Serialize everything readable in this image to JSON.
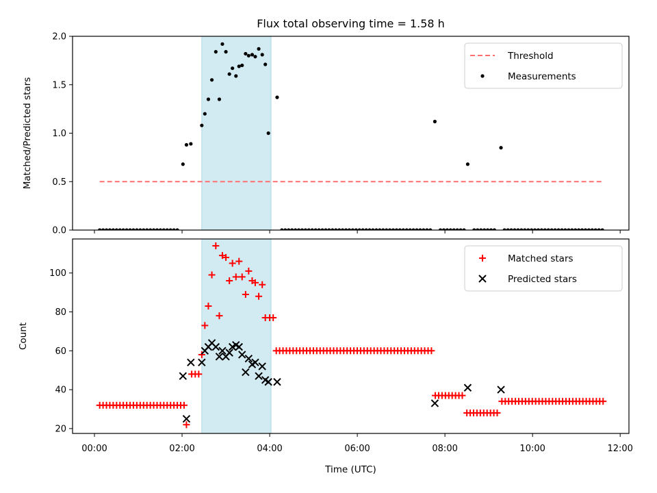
{
  "chart_data": [
    {
      "type": "scatter",
      "title": "Flux total observing time = 1.58 h",
      "xlabel": "",
      "ylabel": "Matched/Predicted stars",
      "xlim": [
        -0.5,
        12.2
      ],
      "ylim": [
        0,
        2.0
      ],
      "yticks": [
        "0.0",
        "0.5",
        "1.0",
        "1.5",
        "2.0"
      ],
      "ytick_values": [
        0,
        0.5,
        1.0,
        1.5,
        2.0
      ],
      "shaded_region": {
        "x0": 2.45,
        "x1": 4.03,
        "color": "#add8e6"
      },
      "threshold": {
        "name": "Threshold",
        "y": 0.5,
        "x0": 0.12,
        "x1": 11.62,
        "color": "#ff6f6f"
      },
      "legend": {
        "position": "upper right",
        "entries": [
          "Threshold",
          "Measurements"
        ]
      },
      "series": [
        {
          "name": "Measurements",
          "color": "#000000",
          "x": [
            2.02,
            2.1,
            2.2,
            2.45,
            2.52,
            2.6,
            2.68,
            2.77,
            2.85,
            2.92,
            3.0,
            3.08,
            3.15,
            3.23,
            3.3,
            3.37,
            3.45,
            3.52,
            3.6,
            3.67,
            3.75,
            3.83,
            3.9,
            3.97,
            4.17,
            7.77,
            8.52,
            9.28
          ],
          "y": [
            0.68,
            0.88,
            0.89,
            1.08,
            1.2,
            1.35,
            1.55,
            1.84,
            1.35,
            1.92,
            1.84,
            1.61,
            1.67,
            1.59,
            1.69,
            1.7,
            1.82,
            1.8,
            1.81,
            1.79,
            1.87,
            1.81,
            1.71,
            1.0,
            1.37,
            1.12,
            0.68,
            0.85
          ],
          "zero_points": {
            "x_start": 0.12,
            "x_end": 11.62,
            "step": 0.077,
            "gaps": [
              [
                1.95,
                4.15
              ],
              [
                4.1,
                4.25
              ],
              [
                7.7,
                7.84
              ],
              [
                8.45,
                8.6
              ],
              [
                9.2,
                9.35
              ]
            ]
          }
        }
      ]
    },
    {
      "type": "scatter",
      "title": "",
      "xlabel": "Time (UTC)",
      "ylabel": "Count",
      "xlim": [
        -0.5,
        12.2
      ],
      "ylim": [
        17.5,
        117.5
      ],
      "xticks": [
        "00:00",
        "02:00",
        "04:00",
        "06:00",
        "08:00",
        "10:00",
        "12:00"
      ],
      "xtick_values": [
        0,
        2,
        4,
        6,
        8,
        10,
        12
      ],
      "yticks": [
        "20",
        "40",
        "60",
        "80",
        "100"
      ],
      "ytick_values": [
        20,
        40,
        60,
        80,
        100
      ],
      "shaded_region": {
        "x0": 2.45,
        "x1": 4.03,
        "color": "#add8e6"
      },
      "legend": {
        "position": "upper right",
        "entries": [
          "Matched stars",
          "Predicted stars"
        ]
      },
      "series": [
        {
          "name": "Matched stars",
          "marker": "plus",
          "color": "#ff0000",
          "flat_segments": [
            {
              "x0": 0.12,
              "x1": 2.05,
              "y": 32
            },
            {
              "x0": 4.15,
              "x1": 7.75,
              "y": 60
            },
            {
              "x0": 7.78,
              "x1": 8.45,
              "y": 37
            },
            {
              "x0": 8.5,
              "x1": 9.25,
              "y": 28
            },
            {
              "x0": 9.3,
              "x1": 11.62,
              "y": 34
            }
          ],
          "x": [
            2.1,
            2.22,
            2.3,
            2.38,
            2.45,
            2.52,
            2.6,
            2.68,
            2.77,
            2.85,
            2.92,
            3.0,
            3.08,
            3.15,
            3.23,
            3.3,
            3.37,
            3.45,
            3.52,
            3.6,
            3.67,
            3.75,
            3.83,
            3.9,
            4.0,
            4.08
          ],
          "y": [
            22,
            48,
            48,
            48,
            58,
            73,
            83,
            99,
            114,
            78,
            109,
            108,
            96,
            105,
            98,
            106,
            98,
            89,
            101,
            96,
            95,
            88,
            94,
            77,
            77,
            77
          ]
        },
        {
          "name": "Predicted stars",
          "marker": "x",
          "color": "#000000",
          "x": [
            2.02,
            2.1,
            2.2,
            2.45,
            2.52,
            2.6,
            2.68,
            2.77,
            2.85,
            2.92,
            3.0,
            3.08,
            3.15,
            3.23,
            3.3,
            3.37,
            3.45,
            3.52,
            3.6,
            3.67,
            3.75,
            3.83,
            3.9,
            3.97,
            4.17,
            7.77,
            8.52,
            9.28
          ],
          "y": [
            47,
            25,
            54,
            54,
            60,
            62,
            64,
            62,
            57,
            60,
            57,
            59,
            62,
            63,
            62,
            58,
            49,
            56,
            53,
            54,
            47,
            52,
            45,
            44,
            44,
            33,
            41,
            40
          ]
        }
      ]
    }
  ]
}
